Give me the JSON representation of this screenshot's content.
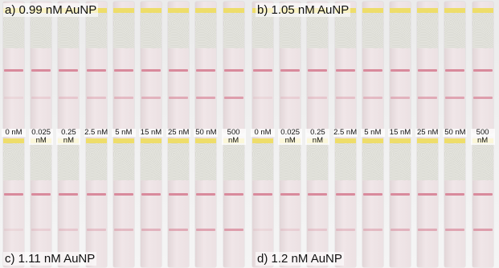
{
  "panels": [
    {
      "label": "a) 0.99 nM AuNP"
    },
    {
      "label": "b) 1.05 nM AuNP"
    },
    {
      "label": "c) 1.11 nM AuNP"
    },
    {
      "label": "d) 1.2 nM AuNP"
    }
  ],
  "concentrations": [
    "0 nM",
    "0.025 nM",
    "0.25 nM",
    "2.5 nM",
    "5 nM",
    "15 nM",
    "25 nM",
    "50 nM",
    "500 nM"
  ]
}
